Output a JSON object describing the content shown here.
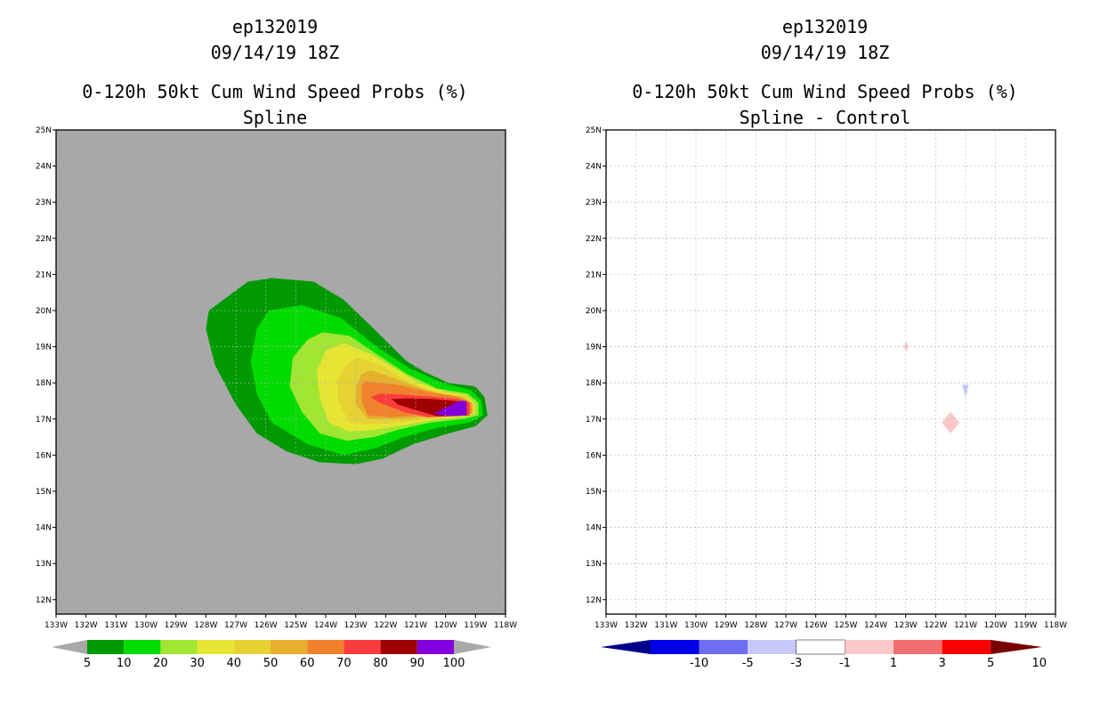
{
  "left_panel": {
    "header": {
      "storm_id": "ep132019",
      "datetime": "09/14/19 18Z",
      "title": "0-120h 50kt Cum Wind Speed Probs (%)",
      "subtitle": "Spline"
    }
  },
  "right_panel": {
    "header": {
      "storm_id": "ep132019",
      "datetime": "09/14/19 18Z",
      "title": "0-120h 50kt Cum Wind Speed Probs (%)",
      "subtitle": "Spline - Control"
    }
  },
  "chart_data": [
    {
      "type": "heatmap",
      "title": "0-120h 50kt Cum Wind Speed Probs (%)",
      "subtitle": "Spline",
      "x_ticks": [
        "133W",
        "132W",
        "131W",
        "130W",
        "129W",
        "128W",
        "127W",
        "126W",
        "125W",
        "124W",
        "123W",
        "122W",
        "121W",
        "120W",
        "119W",
        "118W"
      ],
      "y_ticks": [
        "12N",
        "13N",
        "14N",
        "15N",
        "16N",
        "17N",
        "18N",
        "19N",
        "20N",
        "21N",
        "22N",
        "23N",
        "24N",
        "25N"
      ],
      "xlim": [
        -133,
        -118
      ],
      "ylim": [
        11.6,
        25
      ],
      "grid": true,
      "background": "#a8a8a8",
      "colorbar": {
        "labels": [
          "5",
          "10",
          "20",
          "30",
          "40",
          "50",
          "60",
          "70",
          "80",
          "90",
          "100"
        ],
        "colors": [
          "#009a00",
          "#00dc00",
          "#a0e632",
          "#e6e632",
          "#e6d232",
          "#e6af2d",
          "#f0822d",
          "#fa3c3c",
          "#a00000",
          "#8200dc"
        ],
        "under_color": "#a8a8a8",
        "over_color": "#a8a8a8"
      },
      "contours": [
        {
          "level": "5-10",
          "color": "#009a00",
          "points": [
            [
              -127.9,
              20.0
            ],
            [
              -126.6,
              20.8
            ],
            [
              -125.8,
              20.9
            ],
            [
              -124.4,
              20.8
            ],
            [
              -123.4,
              20.3
            ],
            [
              -122.4,
              19.5
            ],
            [
              -121.3,
              18.6
            ],
            [
              -120.7,
              18.3
            ],
            [
              -119.9,
              18.0
            ],
            [
              -119.0,
              17.9
            ],
            [
              -118.7,
              17.6
            ],
            [
              -118.6,
              17.1
            ],
            [
              -119.0,
              16.8
            ],
            [
              -119.9,
              16.6
            ],
            [
              -121.1,
              16.3
            ],
            [
              -122.1,
              15.9
            ],
            [
              -123.0,
              15.75
            ],
            [
              -124.2,
              15.8
            ],
            [
              -125.3,
              16.1
            ],
            [
              -126.3,
              16.6
            ],
            [
              -127.0,
              17.4
            ],
            [
              -127.7,
              18.5
            ],
            [
              -128.0,
              19.5
            ]
          ]
        },
        {
          "level": "10-20",
          "color": "#00dc00",
          "points": [
            [
              -125.9,
              20.0
            ],
            [
              -124.8,
              20.15
            ],
            [
              -123.5,
              19.8
            ],
            [
              -122.3,
              19.0
            ],
            [
              -121.2,
              18.4
            ],
            [
              -120.1,
              18.0
            ],
            [
              -119.15,
              17.8
            ],
            [
              -118.8,
              17.5
            ],
            [
              -118.75,
              17.1
            ],
            [
              -119.2,
              16.9
            ],
            [
              -120.3,
              16.75
            ],
            [
              -121.4,
              16.5
            ],
            [
              -122.3,
              16.2
            ],
            [
              -123.4,
              16.0
            ],
            [
              -124.6,
              16.3
            ],
            [
              -125.8,
              16.9
            ],
            [
              -126.3,
              17.7
            ],
            [
              -126.5,
              18.6
            ],
            [
              -126.3,
              19.5
            ]
          ]
        },
        {
          "level": "20-30",
          "color": "#a0e632",
          "points": [
            [
              -124.1,
              19.4
            ],
            [
              -123.2,
              19.3
            ],
            [
              -122.3,
              18.8
            ],
            [
              -121.3,
              18.25
            ],
            [
              -120.3,
              17.85
            ],
            [
              -119.25,
              17.7
            ],
            [
              -118.9,
              17.45
            ],
            [
              -118.9,
              17.1
            ],
            [
              -119.4,
              17.0
            ],
            [
              -120.5,
              16.9
            ],
            [
              -121.6,
              16.7
            ],
            [
              -122.4,
              16.5
            ],
            [
              -123.3,
              16.4
            ],
            [
              -124.2,
              16.6
            ],
            [
              -124.8,
              17.2
            ],
            [
              -125.2,
              17.9
            ],
            [
              -125.1,
              18.7
            ],
            [
              -124.6,
              19.2
            ]
          ]
        },
        {
          "level": "30-40",
          "color": "#e6e632",
          "points": [
            [
              -123.4,
              19.1
            ],
            [
              -122.5,
              18.8
            ],
            [
              -121.7,
              18.4
            ],
            [
              -120.9,
              18.0
            ],
            [
              -120.0,
              17.75
            ],
            [
              -119.3,
              17.65
            ],
            [
              -119.0,
              17.4
            ],
            [
              -119.0,
              17.15
            ],
            [
              -119.5,
              17.05
            ],
            [
              -120.6,
              16.95
            ],
            [
              -121.6,
              16.8
            ],
            [
              -122.4,
              16.7
            ],
            [
              -123.2,
              16.65
            ],
            [
              -123.9,
              16.9
            ],
            [
              -124.2,
              17.6
            ],
            [
              -124.3,
              18.3
            ],
            [
              -124.0,
              18.9
            ]
          ]
        },
        {
          "level": "40-50",
          "color": "#e6d232",
          "points": [
            [
              -122.9,
              18.7
            ],
            [
              -122.2,
              18.5
            ],
            [
              -121.4,
              18.1
            ],
            [
              -120.6,
              17.8
            ],
            [
              -119.9,
              17.7
            ],
            [
              -119.3,
              17.62
            ],
            [
              -119.05,
              17.4
            ],
            [
              -119.05,
              17.15
            ],
            [
              -119.6,
              17.08
            ],
            [
              -120.6,
              17.0
            ],
            [
              -121.6,
              16.9
            ],
            [
              -122.5,
              16.85
            ],
            [
              -123.2,
              16.9
            ],
            [
              -123.6,
              17.5
            ],
            [
              -123.6,
              18.1
            ],
            [
              -123.3,
              18.5
            ]
          ]
        },
        {
          "level": "50-60",
          "color": "#e6af2d",
          "points": [
            [
              -122.5,
              18.35
            ],
            [
              -121.8,
              18.15
            ],
            [
              -121.0,
              17.9
            ],
            [
              -120.2,
              17.7
            ],
            [
              -119.4,
              17.6
            ],
            [
              -119.1,
              17.4
            ],
            [
              -119.1,
              17.15
            ],
            [
              -119.7,
              17.1
            ],
            [
              -120.7,
              17.05
            ],
            [
              -121.7,
              17.0
            ],
            [
              -122.6,
              17.0
            ],
            [
              -123.0,
              17.4
            ],
            [
              -123.0,
              17.9
            ],
            [
              -122.8,
              18.25
            ]
          ]
        },
        {
          "level": "60-70",
          "color": "#f0822d",
          "points": [
            [
              -122.7,
              18.05
            ],
            [
              -121.6,
              17.95
            ],
            [
              -120.6,
              17.75
            ],
            [
              -119.6,
              17.62
            ],
            [
              -119.15,
              17.45
            ],
            [
              -119.15,
              17.15
            ],
            [
              -119.8,
              17.12
            ],
            [
              -120.8,
              17.1
            ],
            [
              -121.9,
              17.05
            ],
            [
              -122.6,
              17.1
            ],
            [
              -122.8,
              17.5
            ],
            [
              -122.8,
              17.9
            ]
          ]
        },
        {
          "level": "70-80",
          "color": "#fa3c3c",
          "points": [
            [
              -122.2,
              17.7
            ],
            [
              -121.5,
              17.68
            ],
            [
              -120.5,
              17.62
            ],
            [
              -119.6,
              17.55
            ],
            [
              -119.2,
              17.45
            ],
            [
              -119.2,
              17.1
            ],
            [
              -119.7,
              17.08
            ],
            [
              -120.6,
              17.05
            ],
            [
              -121.4,
              17.2
            ],
            [
              -122.2,
              17.45
            ],
            [
              -122.5,
              17.6
            ]
          ]
        },
        {
          "level": "80-90",
          "color": "#a00000",
          "points": [
            [
              -121.8,
              17.55
            ],
            [
              -121.2,
              17.57
            ],
            [
              -120.4,
              17.55
            ],
            [
              -119.7,
              17.5
            ],
            [
              -119.3,
              17.45
            ],
            [
              -119.3,
              17.1
            ],
            [
              -119.8,
              17.08
            ],
            [
              -120.3,
              17.08
            ],
            [
              -121.0,
              17.25
            ],
            [
              -121.6,
              17.4
            ]
          ]
        },
        {
          "level": "90-100",
          "color": "#8200dc",
          "points": [
            [
              -119.55,
              17.5
            ],
            [
              -119.3,
              17.5
            ],
            [
              -119.3,
              17.1
            ],
            [
              -119.9,
              17.08
            ],
            [
              -120.4,
              17.15
            ],
            [
              -119.9,
              17.35
            ]
          ]
        }
      ]
    },
    {
      "type": "heatmap",
      "title": "0-120h 50kt Cum Wind Speed Probs (%)",
      "subtitle": "Spline - Control",
      "x_ticks": [
        "133W",
        "132W",
        "131W",
        "130W",
        "129W",
        "128W",
        "127W",
        "126W",
        "125W",
        "124W",
        "123W",
        "122W",
        "121W",
        "120W",
        "119W",
        "118W"
      ],
      "y_ticks": [
        "12N",
        "13N",
        "14N",
        "15N",
        "16N",
        "17N",
        "18N",
        "19N",
        "20N",
        "21N",
        "22N",
        "23N",
        "24N",
        "25N"
      ],
      "xlim": [
        -133,
        -118
      ],
      "ylim": [
        11.6,
        25
      ],
      "grid": true,
      "background": "#ffffff",
      "colorbar": {
        "labels": [
          "-10",
          "-5",
          "-3",
          "-1",
          "1",
          "3",
          "5",
          "10"
        ],
        "colors": [
          "#0000e6",
          "#6e6ef0",
          "#c8c8fa",
          "#ffffff",
          "#fac8c8",
          "#f06e6e",
          "#fa0000"
        ],
        "under_color": "#00008c",
        "over_color": "#780000"
      },
      "contours": [
        {
          "level": "1-3",
          "color": "#fac8c8",
          "points": [
            [
              -122.98,
              19.15
            ],
            [
              -122.9,
              19.0
            ],
            [
              -122.98,
              18.88
            ],
            [
              -123.06,
              19.0
            ]
          ]
        },
        {
          "level": "-3--1",
          "color": "#c8c8fa",
          "points": [
            [
              -121.12,
              17.95
            ],
            [
              -120.9,
              17.95
            ],
            [
              -121.0,
              17.6
            ]
          ]
        },
        {
          "level": "1-3",
          "color": "#fac8c8",
          "points": [
            [
              -121.5,
              17.2
            ],
            [
              -121.2,
              16.9
            ],
            [
              -121.5,
              16.6
            ],
            [
              -121.8,
              16.9
            ]
          ]
        }
      ]
    }
  ]
}
